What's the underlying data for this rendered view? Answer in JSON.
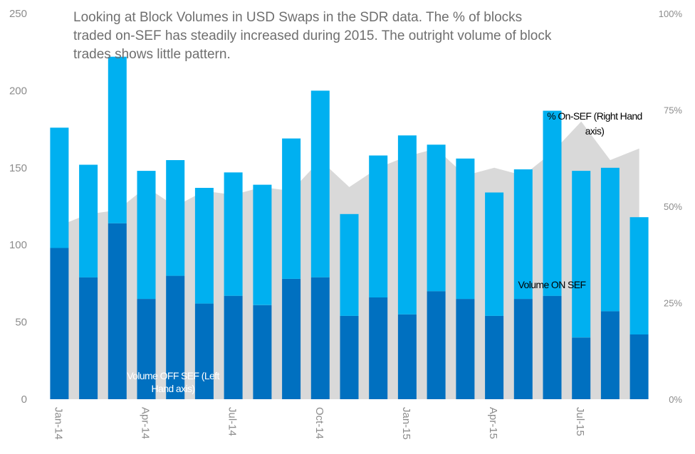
{
  "chart_data": {
    "type": "bar",
    "title": "Looking at Block Volumes in USD Swaps in the SDR data. The % of blocks traded on-SEF has steadily increased during 2015. The outright volume of block trades shows little pattern.",
    "title_lines": [
      "Looking at Block Volumes in USD Swaps in the SDR data. The % of blocks",
      "traded on-SEF has steadily increased during 2015. The outright volume of block",
      "trades shows little pattern."
    ],
    "stacked": true,
    "categories": [
      "Jan-14",
      "Feb-14",
      "Mar-14",
      "Apr-14",
      "May-14",
      "Jun-14",
      "Jul-14",
      "Aug-14",
      "Sep-14",
      "Oct-14",
      "Nov-14",
      "Dec-14",
      "Jan-15",
      "Feb-15",
      "Mar-15",
      "Apr-15",
      "May-15",
      "Jun-15",
      "Jul-15",
      "Aug-15",
      "Sep-15"
    ],
    "x_tick_labels": [
      "Jan-14",
      "Apr-14",
      "Jul-14",
      "Oct-14",
      "Jan-15",
      "Apr-15",
      "Jul-15"
    ],
    "left_axis": {
      "ylim": [
        0,
        250
      ],
      "ticks": [
        "0",
        "50",
        "100",
        "150",
        "200",
        "250"
      ]
    },
    "right_axis": {
      "ylim": [
        0,
        1
      ],
      "ticks": [
        "0%",
        "25%",
        "50%",
        "75%",
        "100%"
      ]
    },
    "grid": false,
    "series": [
      {
        "kind": "bar",
        "axis": "left",
        "color": "#0070c0",
        "values": [
          98,
          79,
          114,
          65,
          80,
          62,
          67,
          61,
          78,
          79,
          54,
          66,
          55,
          70,
          65,
          54,
          65,
          67,
          40,
          57,
          42
        ]
      },
      {
        "kind": "bar",
        "axis": "left",
        "color": "#00b0f0",
        "values": [
          78,
          73,
          108,
          83,
          75,
          75,
          80,
          78,
          91,
          121,
          66,
          92,
          116,
          95,
          91,
          80,
          84,
          120,
          108,
          93,
          76
        ]
      },
      {
        "kind": "area",
        "axis": "right",
        "color": "#d9d9d9",
        "values": [
          0.45,
          0.48,
          0.49,
          0.55,
          0.5,
          0.54,
          0.53,
          0.55,
          0.54,
          0.62,
          0.55,
          0.6,
          0.63,
          0.65,
          0.58,
          0.6,
          0.58,
          0.64,
          0.72,
          0.62,
          0.65
        ]
      }
    ],
    "annotations": {
      "off_sef": [
        "Volume OFF SEF (Left",
        "Hand axis)"
      ],
      "on_sef": [
        "Volume ON SEF"
      ],
      "pct_on_sef": [
        "% On-SEF (Right Hand",
        "axis)"
      ]
    },
    "colors": {
      "off_sef": "#0070c0",
      "on_sef": "#00b0f0",
      "pct_area": "#d9d9d9",
      "axis_text": "#8c8c8c",
      "title_text": "#6f6f6f"
    }
  }
}
